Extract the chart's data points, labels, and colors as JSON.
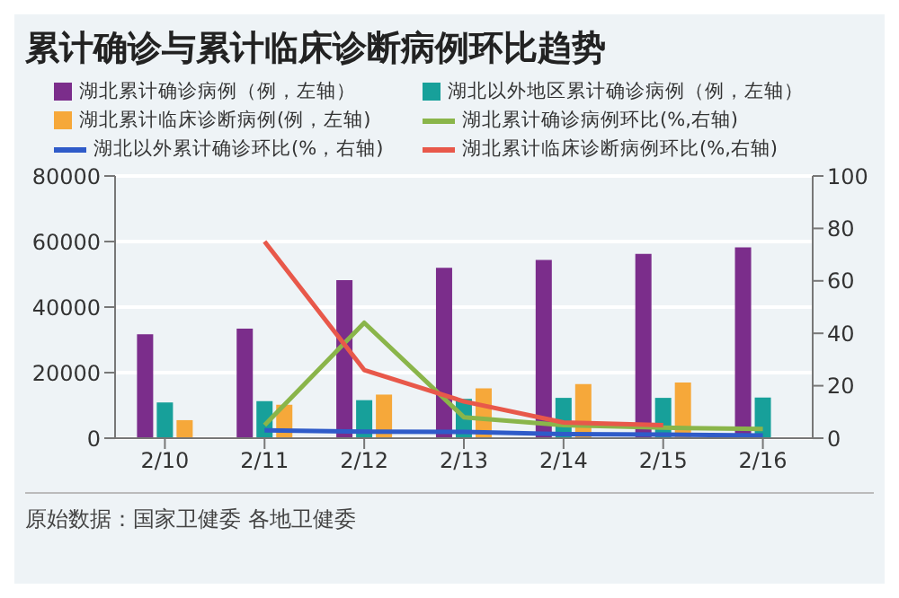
{
  "chart_data": {
    "type": "bar",
    "title": "累计确诊与累计临床诊断病例环比趋势",
    "categories": [
      "2/10",
      "2/11",
      "2/12",
      "2/13",
      "2/14",
      "2/15",
      "2/16"
    ],
    "series": [
      {
        "name": "湖北累计确诊病例（例，左轴）",
        "color": "#7b2d8b",
        "values": [
          31700,
          33400,
          48200,
          52000,
          54400,
          56200,
          58200
        ]
      },
      {
        "name": "湖北以外地区累计确诊病例（例，左轴）",
        "color": "#17a09a",
        "values": [
          10900,
          11300,
          11600,
          12000,
          12300,
          12300,
          12400
        ]
      },
      {
        "name": "湖北累计临床诊断病例(例，左轴)",
        "color": "#f6a83a",
        "values": [
          5500,
          10200,
          13300,
          15200,
          16500,
          17000,
          null
        ]
      },
      {
        "name": "湖北累计确诊病例环比(%,右轴)",
        "type": "line",
        "axis": "y2",
        "color": "#8ab54a",
        "values": [
          null,
          5,
          44,
          8,
          5,
          4,
          3.5
        ]
      },
      {
        "name": "湖北以外累计确诊环比(%，右轴)",
        "type": "line",
        "axis": "y2",
        "color": "#2f5bc9",
        "values": [
          null,
          3,
          2.5,
          2.4,
          1.5,
          1.4,
          1
        ]
      },
      {
        "name": "湖北累计临床诊断病例环比(%,右轴)",
        "type": "line",
        "axis": "y2",
        "color": "#e8584a",
        "values": [
          null,
          75,
          26,
          14,
          6,
          5,
          null
        ]
      }
    ],
    "ylim": [
      0,
      80000
    ],
    "yticks": [
      0,
      20000,
      40000,
      60000,
      80000
    ],
    "y2lim": [
      0,
      100
    ],
    "y2ticks": [
      0,
      20,
      40,
      60,
      80,
      100
    ],
    "grid": "y",
    "legend": "top",
    "marker": "none",
    "line_style": "solid",
    "annotations": [
      "原始数据：国家卫健委 各地卫健委"
    ]
  }
}
